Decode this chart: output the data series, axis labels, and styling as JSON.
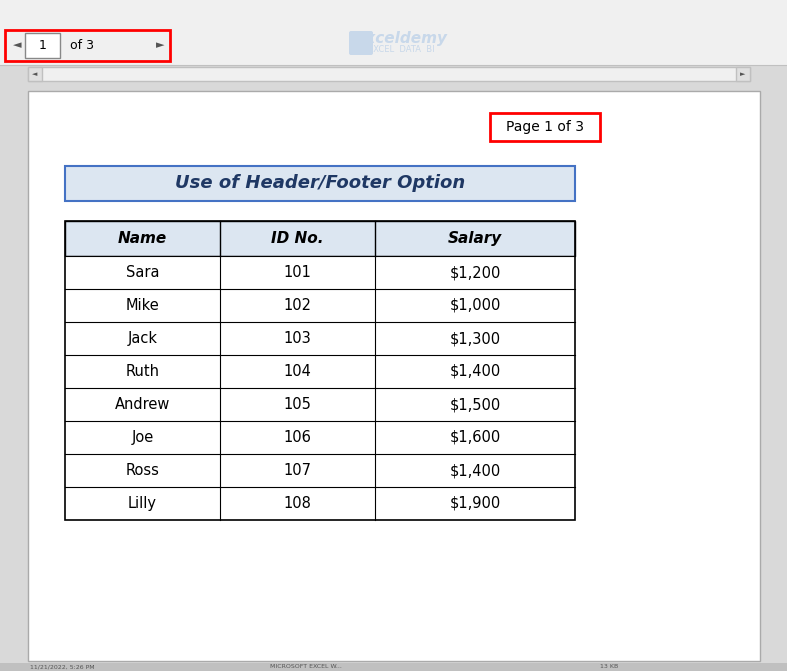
{
  "bg_color": "#d9d9d9",
  "page_bg": "#ffffff",
  "title_text": "Use of Header/Footer Option",
  "title_bg": "#dce6f1",
  "title_border": "#4472c4",
  "page_label": "Page 1 of 3",
  "page_label_border": "#ff0000",
  "headers": [
    "Name",
    "ID No.",
    "Salary"
  ],
  "header_bg": "#dce6f1",
  "rows": [
    [
      "Sara",
      "101",
      "$1,200"
    ],
    [
      "Mike",
      "102",
      "$1,000"
    ],
    [
      "Jack",
      "103",
      "$1,300"
    ],
    [
      "Ruth",
      "104",
      "$1,400"
    ],
    [
      "Andrew",
      "105",
      "$1,500"
    ],
    [
      "Joe",
      "106",
      "$1,600"
    ],
    [
      "Ross",
      "107",
      "$1,400"
    ],
    [
      "Lilly",
      "108",
      "$1,900"
    ]
  ],
  "table_border": "#000000",
  "row_bg": "#ffffff",
  "cell_text_color": "#000000",
  "scrollbar_bg": "#f0f0f0",
  "scrollbar_border": "#c0c0c0",
  "nav_box_border": "#ff0000",
  "exceldemy_color": "#c8d8ea",
  "status_bar_bg": "#f0f0f0"
}
